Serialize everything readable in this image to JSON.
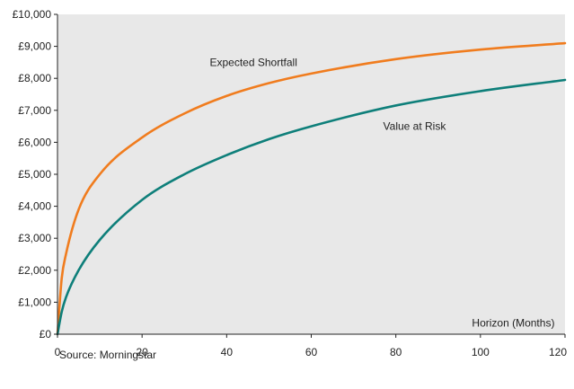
{
  "chart_data": {
    "type": "line",
    "title": "",
    "xlabel": "Horizon (Months)",
    "ylabel": "",
    "xlim": [
      0,
      120
    ],
    "ylim": [
      0,
      10000
    ],
    "x_ticks": [
      0,
      20,
      40,
      60,
      80,
      100,
      120
    ],
    "y_ticks": [
      0,
      1000,
      2000,
      3000,
      4000,
      5000,
      6000,
      7000,
      8000,
      9000,
      10000
    ],
    "y_tick_labels": [
      "£0",
      "£1,000",
      "£2,000",
      "£3,000",
      "£4,000",
      "£5,000",
      "£6,000",
      "£7,000",
      "£8,000",
      "£9,000",
      "£10,000"
    ],
    "x_tick_labels": [
      "0",
      "20",
      "40",
      "60",
      "80",
      "100",
      "120"
    ],
    "grid": false,
    "background": "#e8e8e8",
    "x": [
      0,
      1,
      2,
      5,
      10,
      20,
      30,
      40,
      50,
      60,
      80,
      100,
      120
    ],
    "series": [
      {
        "name": "Expected Shortfall",
        "color": "#f07c1e",
        "values": [
          0,
          1750,
          2500,
          3900,
          5000,
          6150,
          6900,
          7450,
          7850,
          8150,
          8600,
          8900,
          9100
        ]
      },
      {
        "name": "Value at Risk",
        "color": "#0e7f7a",
        "values": [
          0,
          700,
          1150,
          2000,
          2950,
          4200,
          5000,
          5600,
          6100,
          6500,
          7150,
          7600,
          7950
        ]
      }
    ],
    "annotations": [
      {
        "text": "Expected Shortfall",
        "x": 36,
        "y": 8500
      },
      {
        "text": "Value at Risk",
        "x": 77,
        "y": 6500
      },
      {
        "text": "Horizon (Months)",
        "x": 98,
        "y": 350
      }
    ],
    "source": "Source: Morningstar"
  }
}
